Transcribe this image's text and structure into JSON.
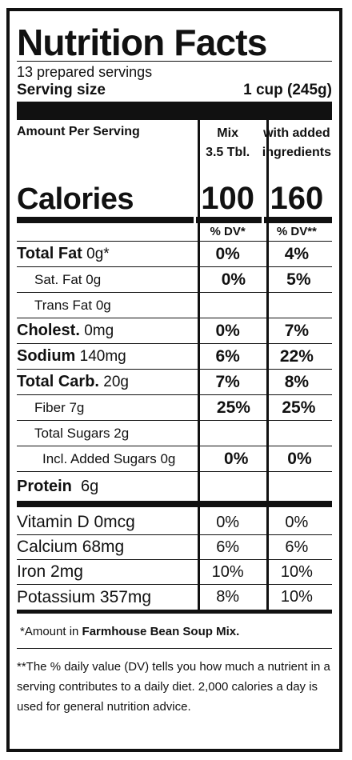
{
  "title": "Nutrition Facts",
  "servings": "13 prepared servings",
  "serving_size": {
    "label": "Serving size",
    "value": "1 cup (245g)"
  },
  "header": {
    "amount_per_serving": "Amount Per Serving",
    "col_mix_line1": "Mix",
    "col_mix_line2": "3.5 Tbl.",
    "col_added_line1": "with added",
    "col_added_line2": "ingredients"
  },
  "calories": {
    "label": "Calories",
    "mix": "100",
    "added": "160"
  },
  "dv_headers": {
    "mix": "% DV*",
    "added": "% DV**"
  },
  "nutrients": [
    {
      "name": "Total Fat",
      "amount": "0g*",
      "mix": "0%",
      "added": "4%"
    },
    {
      "name": "Sat. Fat",
      "amount": "0g",
      "mix": "0%",
      "added": "5%"
    },
    {
      "name": "Trans Fat",
      "amount": "0g",
      "mix": "",
      "added": ""
    },
    {
      "name": "Cholest.",
      "amount": "0mg",
      "mix": "0%",
      "added": "7%"
    },
    {
      "name": "Sodium",
      "amount": "140mg",
      "mix": "6%",
      "added": "22%"
    },
    {
      "name": "Total Carb.",
      "amount": "20g",
      "mix": "7%",
      "added": "8%"
    },
    {
      "name": "Fiber",
      "amount": "7g",
      "mix": "25%",
      "added": "25%"
    },
    {
      "name": "Total Sugars",
      "amount": "2g",
      "mix": "",
      "added": ""
    },
    {
      "name": "Incl. Added Sugars",
      "amount": "0g",
      "mix": "0%",
      "added": "0%"
    }
  ],
  "protein": {
    "name": "Protein",
    "amount": "6g"
  },
  "vitamins": [
    {
      "name": "Vitamin D",
      "amount": "0mcg",
      "mix": "0%",
      "added": "0%"
    },
    {
      "name": "Calcium",
      "amount": "68mg",
      "mix": "6%",
      "added": "6%"
    },
    {
      "name": "Iron",
      "amount": "2mg",
      "mix": "10%",
      "added": "10%"
    },
    {
      "name": "Potassium",
      "amount": "357mg",
      "mix": "8%",
      "added": "10%"
    }
  ],
  "footnotes": {
    "amount_prefix": "*Amount in ",
    "product_name": "Farmhouse Bean Soup Mix.",
    "dv_note": "**The % daily value (DV) tells you how much a nutrient in a serving contributes to a daily diet. 2,000 calories a day is used for general nutrition advice."
  }
}
